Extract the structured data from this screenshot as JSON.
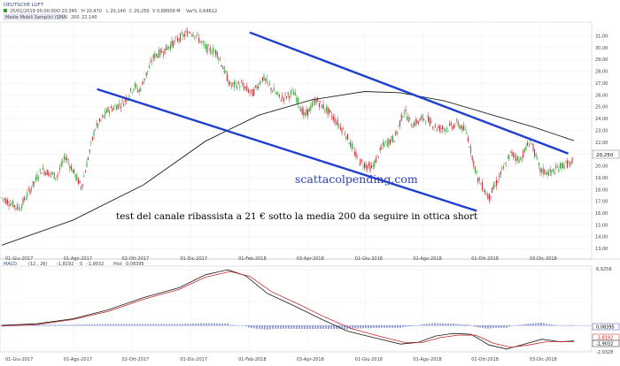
{
  "header": {
    "symbol": "DEUTSCHE LUFT",
    "date_time": "25/01/2019 00:00:00",
    "open": "O 20,345",
    "high": "H 20,470",
    "low": "L 20,140",
    "close": "C 20,250",
    "volume": "V 0,88009 M",
    "var": "Var% 0,64612",
    "sma_label": "Medie Mobili Semplici (SMA)",
    "sma_period": "200",
    "sma_value": "22,140"
  },
  "price_badge": "20,250",
  "watermark": "scattacolpending.com",
  "annotation": "test del canale ribassista a 21 € sotto la media 200 da seguire in ottica short",
  "macd_header": {
    "label": "MACD",
    "params": "(12 , 26)",
    "macd_value": "-1,8192",
    "signal_label": "S",
    "signal_value": "-1,9032",
    "hist_label": "Hist",
    "hist_value": "0,08395"
  },
  "macd_badges": {
    "hist": "0,08395",
    "macd": "-1,8192",
    "signal": "-1,9032"
  },
  "macd_axis": {
    "top": "6,9258",
    "bottom": "-2,9328"
  },
  "colors": {
    "up": "#2e9e2e",
    "down": "#c8202a",
    "sma": "#222222",
    "channel": "#1f3fd1",
    "macd_line": "#1a1a1a",
    "signal_line": "#c62828",
    "histogram": "#3b4bb0",
    "watermark": "#2a3fbf"
  },
  "chart_data": [
    {
      "type": "candlestick",
      "x_ticks": [
        "01-Giu-2017",
        "01-Ago-2017",
        "02-Ott-2017",
        "01-Dic-2017",
        "01-Feb-2018",
        "03-Apr-2018",
        "01-Giu-2018",
        "01-Ago-2018",
        "01-Ott-2018",
        "03-Dic-2018"
      ],
      "y_ticks": [
        "31,00",
        "30,00",
        "29,00",
        "28,00",
        "27,00",
        "26,00",
        "25,00",
        "24,00",
        "23,00",
        "22,00",
        "21,00",
        "20,00",
        "19,00",
        "18,00",
        "17,00",
        "16,00",
        "15,00",
        "14,00",
        "13,00"
      ],
      "ylim": [
        12.5,
        31.8
      ],
      "price_path": [
        [
          0,
          17.3
        ],
        [
          20,
          16.4
        ],
        [
          45,
          19.7
        ],
        [
          62,
          19.1
        ],
        [
          72,
          20.8
        ],
        [
          90,
          18.2
        ],
        [
          105,
          23.1
        ],
        [
          120,
          24.7
        ],
        [
          138,
          25.4
        ],
        [
          150,
          26.8
        ],
        [
          155,
          26.3
        ],
        [
          172,
          29.3
        ],
        [
          182,
          29.7
        ],
        [
          200,
          30.8
        ],
        [
          213,
          31.4
        ],
        [
          220,
          31.0
        ],
        [
          230,
          30.0
        ],
        [
          243,
          29.6
        ],
        [
          258,
          26.8
        ],
        [
          270,
          26.9
        ],
        [
          283,
          26.1
        ],
        [
          295,
          27.5
        ],
        [
          304,
          26.6
        ],
        [
          315,
          25.7
        ],
        [
          330,
          26.2
        ],
        [
          342,
          24.2
        ],
        [
          355,
          25.6
        ],
        [
          370,
          24.5
        ],
        [
          387,
          22.9
        ],
        [
          403,
          20.4
        ],
        [
          418,
          19.8
        ],
        [
          431,
          21.8
        ],
        [
          444,
          22.4
        ],
        [
          454,
          24.7
        ],
        [
          463,
          23.5
        ],
        [
          478,
          24.1
        ],
        [
          492,
          23.2
        ],
        [
          503,
          23.2
        ],
        [
          515,
          23.6
        ],
        [
          525,
          22.8
        ],
        [
          537,
          19.0
        ],
        [
          550,
          17.3
        ],
        [
          562,
          19.1
        ],
        [
          575,
          21.1
        ],
        [
          585,
          20.5
        ],
        [
          597,
          22.2
        ],
        [
          608,
          19.6
        ],
        [
          620,
          19.4
        ],
        [
          633,
          20.1
        ],
        [
          646,
          20.25
        ]
      ],
      "sma200": [
        [
          0,
          13.3
        ],
        [
          80,
          15.4
        ],
        [
          160,
          18.4
        ],
        [
          230,
          22.1
        ],
        [
          290,
          24.3
        ],
        [
          350,
          25.6
        ],
        [
          410,
          26.3
        ],
        [
          450,
          26.2
        ],
        [
          500,
          25.5
        ],
        [
          550,
          24.4
        ],
        [
          600,
          23.3
        ],
        [
          646,
          22.14
        ]
      ],
      "channel_upper": [
        [
          13.0,
          31.3
        ],
        [
          29.7,
          21.05
        ]
      ],
      "channel_lower": [
        [
          5.0,
          26.5
        ],
        [
          24.9,
          16.2
        ]
      ],
      "last_close": 20.25
    },
    {
      "type": "line",
      "title": "MACD",
      "series": [
        {
          "name": "MACD",
          "points": [
            [
              0,
              0.1
            ],
            [
              40,
              0.3
            ],
            [
              80,
              0.9
            ],
            [
              120,
              2.0
            ],
            [
              160,
              3.5
            ],
            [
              200,
              4.7
            ],
            [
              230,
              6.3
            ],
            [
              255,
              6.9
            ],
            [
              275,
              6.2
            ],
            [
              300,
              4.0
            ],
            [
              330,
              2.5
            ],
            [
              360,
              0.9
            ],
            [
              390,
              -0.6
            ],
            [
              420,
              -1.4
            ],
            [
              450,
              -2.2
            ],
            [
              470,
              -2.0
            ],
            [
              490,
              -1.2
            ],
            [
              510,
              -0.9
            ],
            [
              530,
              -1.0
            ],
            [
              550,
              -2.3
            ],
            [
              570,
              -2.8
            ],
            [
              590,
              -2.2
            ],
            [
              610,
              -1.6
            ],
            [
              630,
              -1.9
            ],
            [
              646,
              -1.82
            ]
          ]
        },
        {
          "name": "S",
          "points": [
            [
              0,
              0.0
            ],
            [
              40,
              0.2
            ],
            [
              80,
              0.8
            ],
            [
              120,
              1.8
            ],
            [
              160,
              3.3
            ],
            [
              200,
              4.5
            ],
            [
              230,
              6.0
            ],
            [
              258,
              6.7
            ],
            [
              280,
              6.1
            ],
            [
              305,
              4.2
            ],
            [
              335,
              2.7
            ],
            [
              365,
              1.1
            ],
            [
              395,
              -0.3
            ],
            [
              425,
              -1.2
            ],
            [
              455,
              -2.0
            ],
            [
              475,
              -2.0
            ],
            [
              495,
              -1.4
            ],
            [
              515,
              -1.1
            ],
            [
              535,
              -1.1
            ],
            [
              555,
              -2.1
            ],
            [
              575,
              -2.6
            ],
            [
              595,
              -2.3
            ],
            [
              615,
              -1.9
            ],
            [
              635,
              -1.9
            ],
            [
              646,
              -1.9
            ]
          ]
        },
        {
          "name": "Hist",
          "value_last": 0.08395
        }
      ],
      "ylim": [
        -2.9328,
        6.9258
      ]
    }
  ]
}
